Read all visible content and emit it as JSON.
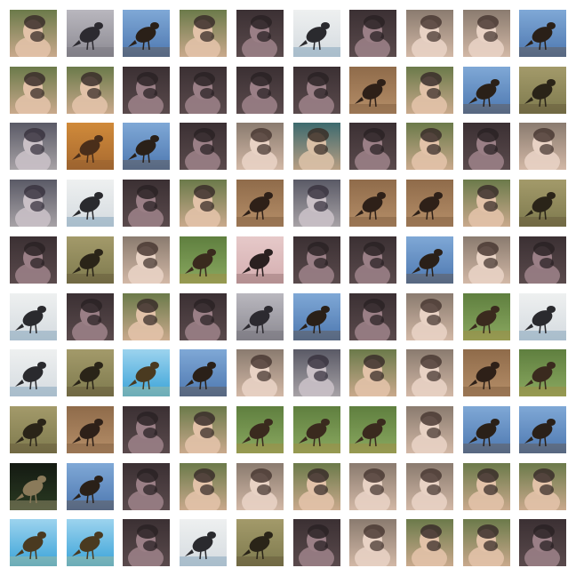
{
  "grid": {
    "rows": 10,
    "cols": 10,
    "tiles": [
      [
        "portrait-green",
        "bird-gray",
        "bird-blue",
        "portrait-green",
        "portrait-dark",
        "bird-white",
        "portrait-dark",
        "portrait-light",
        "portrait-light",
        "bird-blue"
      ],
      [
        "portrait-green",
        "portrait-green",
        "portrait-dark",
        "portrait-dark",
        "portrait-dark",
        "portrait-dark",
        "bird-brown",
        "portrait-green",
        "bird-blue",
        "bird-olive"
      ],
      [
        "portrait-gray",
        "bird-orange",
        "bird-blue",
        "portrait-dark",
        "portrait-light",
        "portrait-teal",
        "portrait-dark",
        "portrait-green",
        "portrait-dark",
        "portrait-light"
      ],
      [
        "portrait-gray",
        "bird-white",
        "portrait-dark",
        "portrait-green",
        "bird-brown",
        "portrait-gray",
        "bird-brown",
        "bird-brown",
        "portrait-green",
        "bird-olive"
      ],
      [
        "portrait-dark",
        "bird-olive",
        "portrait-light",
        "bird-green",
        "bird-pink",
        "portrait-dark",
        "portrait-dark",
        "bird-blue",
        "portrait-light",
        "portrait-dark"
      ],
      [
        "bird-white",
        "portrait-dark",
        "portrait-green",
        "portrait-dark",
        "bird-gray",
        "bird-blue",
        "portrait-dark",
        "portrait-light",
        "bird-green",
        "bird-white"
      ],
      [
        "bird-white",
        "bird-olive",
        "bird-sky",
        "bird-blue",
        "portrait-light",
        "portrait-gray",
        "portrait-green",
        "portrait-light",
        "bird-brown",
        "bird-green"
      ],
      [
        "bird-olive",
        "bird-brown",
        "portrait-dark",
        "portrait-green",
        "bird-green",
        "bird-green",
        "bird-green",
        "portrait-light",
        "bird-blue",
        "bird-blue"
      ],
      [
        "bird-dark",
        "bird-blue",
        "portrait-dark",
        "portrait-green",
        "portrait-light",
        "portrait-green",
        "portrait-light",
        "portrait-light",
        "portrait-green",
        "portrait-green"
      ],
      [
        "bird-sky",
        "bird-sky",
        "portrait-dark",
        "bird-white",
        "bird-olive",
        "portrait-dark",
        "portrait-light",
        "portrait-green",
        "portrait-green",
        "portrait-dark"
      ]
    ]
  }
}
